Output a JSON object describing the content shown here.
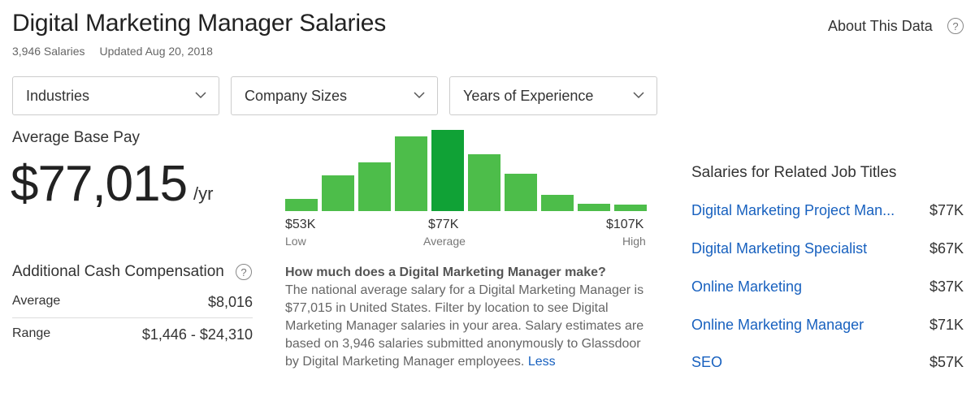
{
  "header": {
    "title": "Digital Marketing Manager Salaries",
    "salary_count": "3,946 Salaries",
    "updated": "Updated Aug 20, 2018",
    "about_link": "About This Data"
  },
  "filters": [
    "Industries",
    "Company Sizes",
    "Years of Experience"
  ],
  "base_pay": {
    "label": "Average Base Pay",
    "value": "$77,015",
    "unit": "/yr"
  },
  "histogram": {
    "low_value": "$53K",
    "low_label": "Low",
    "avg_value": "$77K",
    "avg_label": "Average",
    "high_value": "$107K",
    "high_label": "High",
    "bar_color": "#4dbd4a",
    "highlight_color": "#10a236"
  },
  "chart_data": {
    "type": "bar",
    "categories": [
      "1",
      "2",
      "3",
      "4",
      "5",
      "6",
      "7",
      "8",
      "9",
      "10"
    ],
    "values": [
      15,
      44,
      60,
      92,
      100,
      70,
      46,
      20,
      9,
      8
    ],
    "highlight_index": 4
  },
  "additional_cash": {
    "label": "Additional Cash Compensation",
    "rows": [
      {
        "label": "Average",
        "value": "$8,016"
      },
      {
        "label": "Range",
        "value": "$1,446 - $24,310"
      }
    ]
  },
  "description": {
    "question": "How much does a Digital Marketing Manager make?",
    "body": "The national average salary for a Digital Marketing Manager is $77,015 in United States. Filter by location to see Digital Marketing Manager salaries in your area. Salary estimates are based on 3,946 salaries submitted anonymously to Glassdoor by Digital Marketing Manager employees.",
    "less_link": "Less"
  },
  "related": {
    "title": "Salaries for Related Job Titles",
    "items": [
      {
        "name": "Digital Marketing Project Man...",
        "pay": "$77K"
      },
      {
        "name": "Digital Marketing Specialist",
        "pay": "$67K"
      },
      {
        "name": "Online Marketing",
        "pay": "$37K"
      },
      {
        "name": "Online Marketing Manager",
        "pay": "$71K"
      },
      {
        "name": "SEO",
        "pay": "$57K"
      }
    ]
  },
  "colors": {
    "link": "#1861bf"
  }
}
